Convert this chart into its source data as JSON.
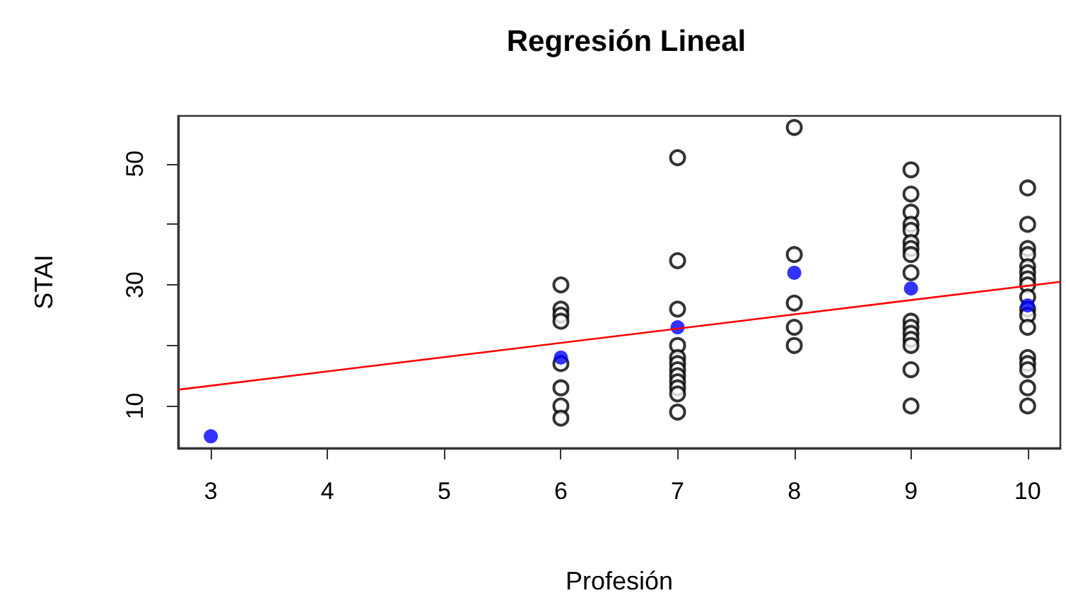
{
  "chart_data": {
    "type": "scatter",
    "title": "Regresión Lineal",
    "xlabel": "Profesión",
    "ylabel": "STAI",
    "xlim": [
      2.72,
      10.28
    ],
    "ylim": [
      3.05,
      57.9
    ],
    "xticks": [
      3,
      4,
      5,
      6,
      7,
      8,
      9,
      10
    ],
    "yticks": [
      10,
      {
        "value": 20,
        "label": null
      },
      30,
      {
        "value": 40,
        "label": null
      },
      50
    ],
    "grid": false,
    "series": [
      {
        "marker": "circle",
        "color": "#000000",
        "x": [
          6,
          6,
          6,
          6,
          6,
          6,
          6,
          6,
          7,
          7,
          7,
          7,
          7,
          7,
          7,
          7,
          7,
          7,
          7,
          7,
          8,
          8,
          8,
          8,
          8,
          9,
          9,
          9,
          9,
          9,
          9,
          9,
          9,
          9,
          9,
          9,
          9,
          9,
          9,
          9,
          9,
          10,
          10,
          10,
          10,
          10,
          10,
          10,
          10,
          10,
          10,
          10,
          10,
          10,
          10,
          10,
          10,
          10
        ],
        "values": [
          30,
          26,
          25,
          24,
          17,
          13,
          10,
          8,
          51,
          34,
          26,
          20,
          18,
          17,
          16,
          15,
          14,
          13,
          12,
          9,
          56,
          35,
          27,
          23,
          20,
          49,
          45,
          42,
          40,
          39,
          37,
          36,
          35,
          32,
          24,
          23,
          22,
          21,
          20,
          16,
          10,
          46,
          40,
          36,
          35,
          33,
          32,
          31,
          30,
          28,
          26,
          25,
          23,
          18,
          17,
          16,
          13,
          10
        ]
      },
      {
        "marker": "circle",
        "color": "#0000ff",
        "x": [
          3,
          6,
          7,
          8,
          9,
          10
        ],
        "values": [
          5,
          18,
          23,
          32,
          29.4,
          26.6
        ]
      },
      {
        "type": "line",
        "color": "#ff0000",
        "x": [
          2.72,
          10.28
        ],
        "values": [
          12.7,
          30.5
        ]
      }
    ]
  }
}
